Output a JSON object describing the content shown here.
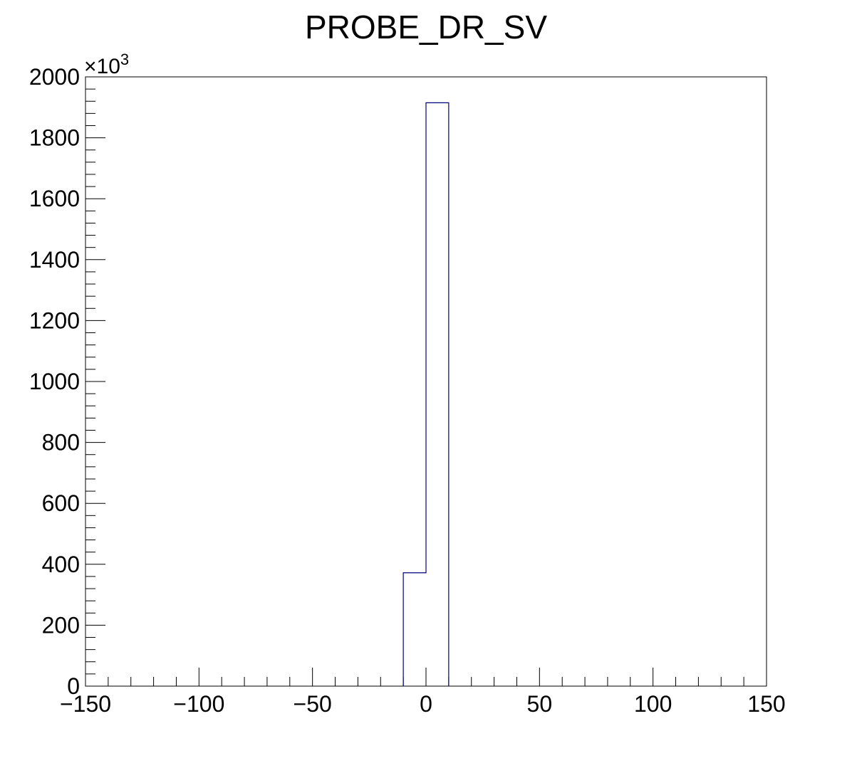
{
  "chart_data": {
    "type": "bar",
    "histogram": true,
    "title": "PROBE_DR_SV",
    "xlabel": "",
    "ylabel": "",
    "xlim": [
      -150,
      150
    ],
    "ylim": [
      0,
      2000
    ],
    "y_multiplier_label": "×10",
    "y_multiplier_exponent": "3",
    "x_ticks": [
      -150,
      -100,
      -50,
      0,
      50,
      100,
      150
    ],
    "x_tick_labels": [
      "−150",
      "−100",
      "−50",
      "0",
      "50",
      "100",
      "150"
    ],
    "y_ticks": [
      0,
      200,
      400,
      600,
      800,
      1000,
      1200,
      1400,
      1600,
      1800,
      2000
    ],
    "y_tick_labels": [
      "0",
      "200",
      "400",
      "600",
      "800",
      "1000",
      "1200",
      "1400",
      "1600",
      "1800",
      "2000"
    ],
    "bins": [
      {
        "x_low": -10,
        "x_high": 0,
        "value": 372
      },
      {
        "x_low": 0,
        "x_high": 10,
        "value": 1915
      }
    ],
    "line_color": "#000080",
    "grid": false,
    "legend": "none"
  }
}
